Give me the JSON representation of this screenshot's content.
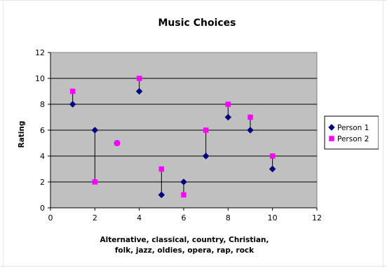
{
  "chart_data": {
    "type": "scatter",
    "title": "Music Choices",
    "xlabel_lines": [
      "Alternative, classical, country, Christian,",
      "folk, jazz, oldies, opera, rap, rock"
    ],
    "ylabel": "Rating",
    "xlim": [
      0,
      12
    ],
    "ylim": [
      0,
      12
    ],
    "xticks": [
      0,
      2,
      4,
      6,
      8,
      10,
      12
    ],
    "yticks": [
      0,
      2,
      4,
      6,
      8,
      10,
      12
    ],
    "grid": "horizontal major gridlines",
    "plot_background": "#c0c0c0",
    "legend_position": "right",
    "drop_lines": true,
    "series": [
      {
        "name": "Person 1",
        "marker": "diamond",
        "color": "#000080",
        "x": [
          1,
          2,
          3,
          4,
          5,
          6,
          7,
          8,
          9,
          10
        ],
        "y": [
          8,
          6,
          5,
          9,
          1,
          2,
          4,
          7,
          6,
          3
        ]
      },
      {
        "name": "Person 2",
        "marker": "square",
        "color": "#ff00ff",
        "x": [
          1,
          2,
          3,
          4,
          5,
          6,
          7,
          8,
          9,
          10
        ],
        "y": [
          9,
          2,
          5,
          10,
          3,
          1,
          6,
          8,
          7,
          4
        ]
      }
    ]
  }
}
